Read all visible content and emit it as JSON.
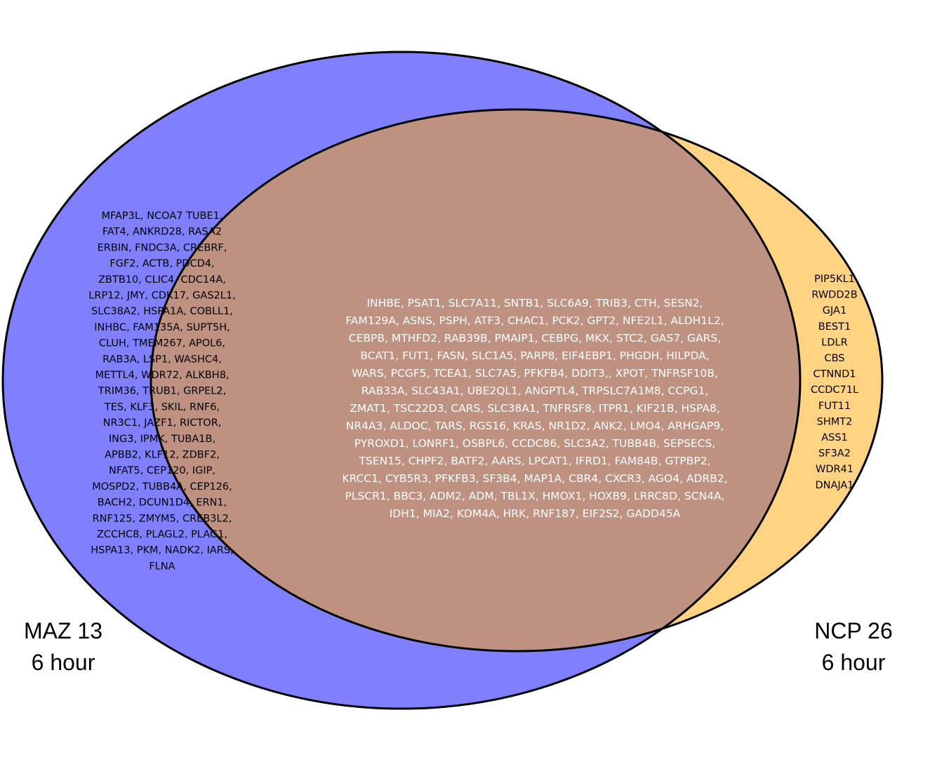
{
  "colors": {
    "left_only": "#8080ff",
    "overlap": "#bf9180",
    "right_only": "#ffd381",
    "outline": "#000000"
  },
  "sets": {
    "left": {
      "name": "MAZ 13",
      "timepoint": "6 hour"
    },
    "right": {
      "name": "NCP 26",
      "timepoint": "6 hour"
    }
  },
  "regions": {
    "left_only_lines": [
      "MFAP3L, NCOA7 TUBE1,",
      "FAT4, ANKRD28, RASA2",
      "ERBIN, FNDC3A, CREBRF,",
      "FGF2, ACTB, PDCD4,",
      "ZBTB10, CLIC4, CDC14A,",
      "LRP12, JMY, CDK17, GAS2L1,",
      "SLC38A2, HSPA1A, COBLL1,",
      "INHBC, FAM135A, SUPT5H,",
      "CLUH, TMEM267, APOL6,",
      "RAB3A, LSP1, WASHC4,",
      "METTL4, WDR72, ALKBH8,",
      "TRIM36, TRUB1, GRPEL2,",
      "TES, KLF3, SKIL, RNF6,",
      "NR3C1, JAZF1, RICTOR,",
      "ING3, IPMK, TUBA1B,",
      "APBB2, KLF12, ZDBF2,",
      "NFAT5, CEP120, IGIP,",
      "MOSPD2, TUBB4A, CEP126,",
      "BACH2, DCUN1D4, ERN1,",
      "RNF125, ZMYM5, CREB3L2,",
      "ZCCHC8, PLAGL2, PLAG1,",
      "HSPA13, PKM, NADK2, IARS,",
      "FLNA"
    ],
    "overlap_lines": [
      "INHBE, PSAT1, SLC7A11, SNTB1, SLC6A9, TRIB3, CTH, SESN2,",
      "FAM129A, ASNS, PSPH, ATF3, CHAC1, PCK2, GPT2, NFE2L1, ALDH1L2,",
      "CEBPB, MTHFD2, RAB39B, PMAIP1, CEBPG, MKX, STC2, GAS7, GARS,",
      "BCAT1, FUT1, FASN, SLC1A5, PARP8, EIF4EBP1, PHGDH, HILPDA,",
      "WARS, PCGF5, TCEA1, SLC7A5, PFKFB4, DDIT3,, XPOT, TNFRSF10B,",
      "RAB33A, SLC43A1, UBE2QL1, ANGPTL4, TRPSLC7A1M8, CCPG1,",
      "ZMAT1, TSC22D3, CARS, SLC38A1, TNFRSF8, ITPR1, KIF21B, HSPA8,",
      "NR4A3, ALDOC, TARS, RGS16, KRAS, NR1D2, ANK2, LMO4, ARHGAP9,",
      "PYROXD1, LONRF1, OSBPL6, CCDC86, SLC3A2, TUBB4B, SEPSECS,",
      "TSEN15, CHPF2, BATF2, AARS, LPCAT1, IFRD1, FAM84B, GTPBP2,",
      "KRCC1, CYB5R3, PFKFB3, SF3B4, MAP1A, CBR4, CXCR3, AGO4, ADRB2,",
      "PLSCR1, BBC3, ADM2, ADM, TBL1X, HMOX1, HOXB9, LRRC8D, SCN4A,",
      "IDH1, MIA2, KDM4A, HRK, RNF187, EIF2S2, GADD45A"
    ],
    "right_only_lines": [
      "PIP5KL1",
      "RWDD2B",
      "GJA1",
      "BEST1",
      "LDLR",
      "CBS",
      "CTNND1",
      "CCDC71L",
      "FUT11",
      "SHMT2",
      "ASS1",
      "SF3A2",
      "WDR41",
      "DNAJA1"
    ]
  }
}
